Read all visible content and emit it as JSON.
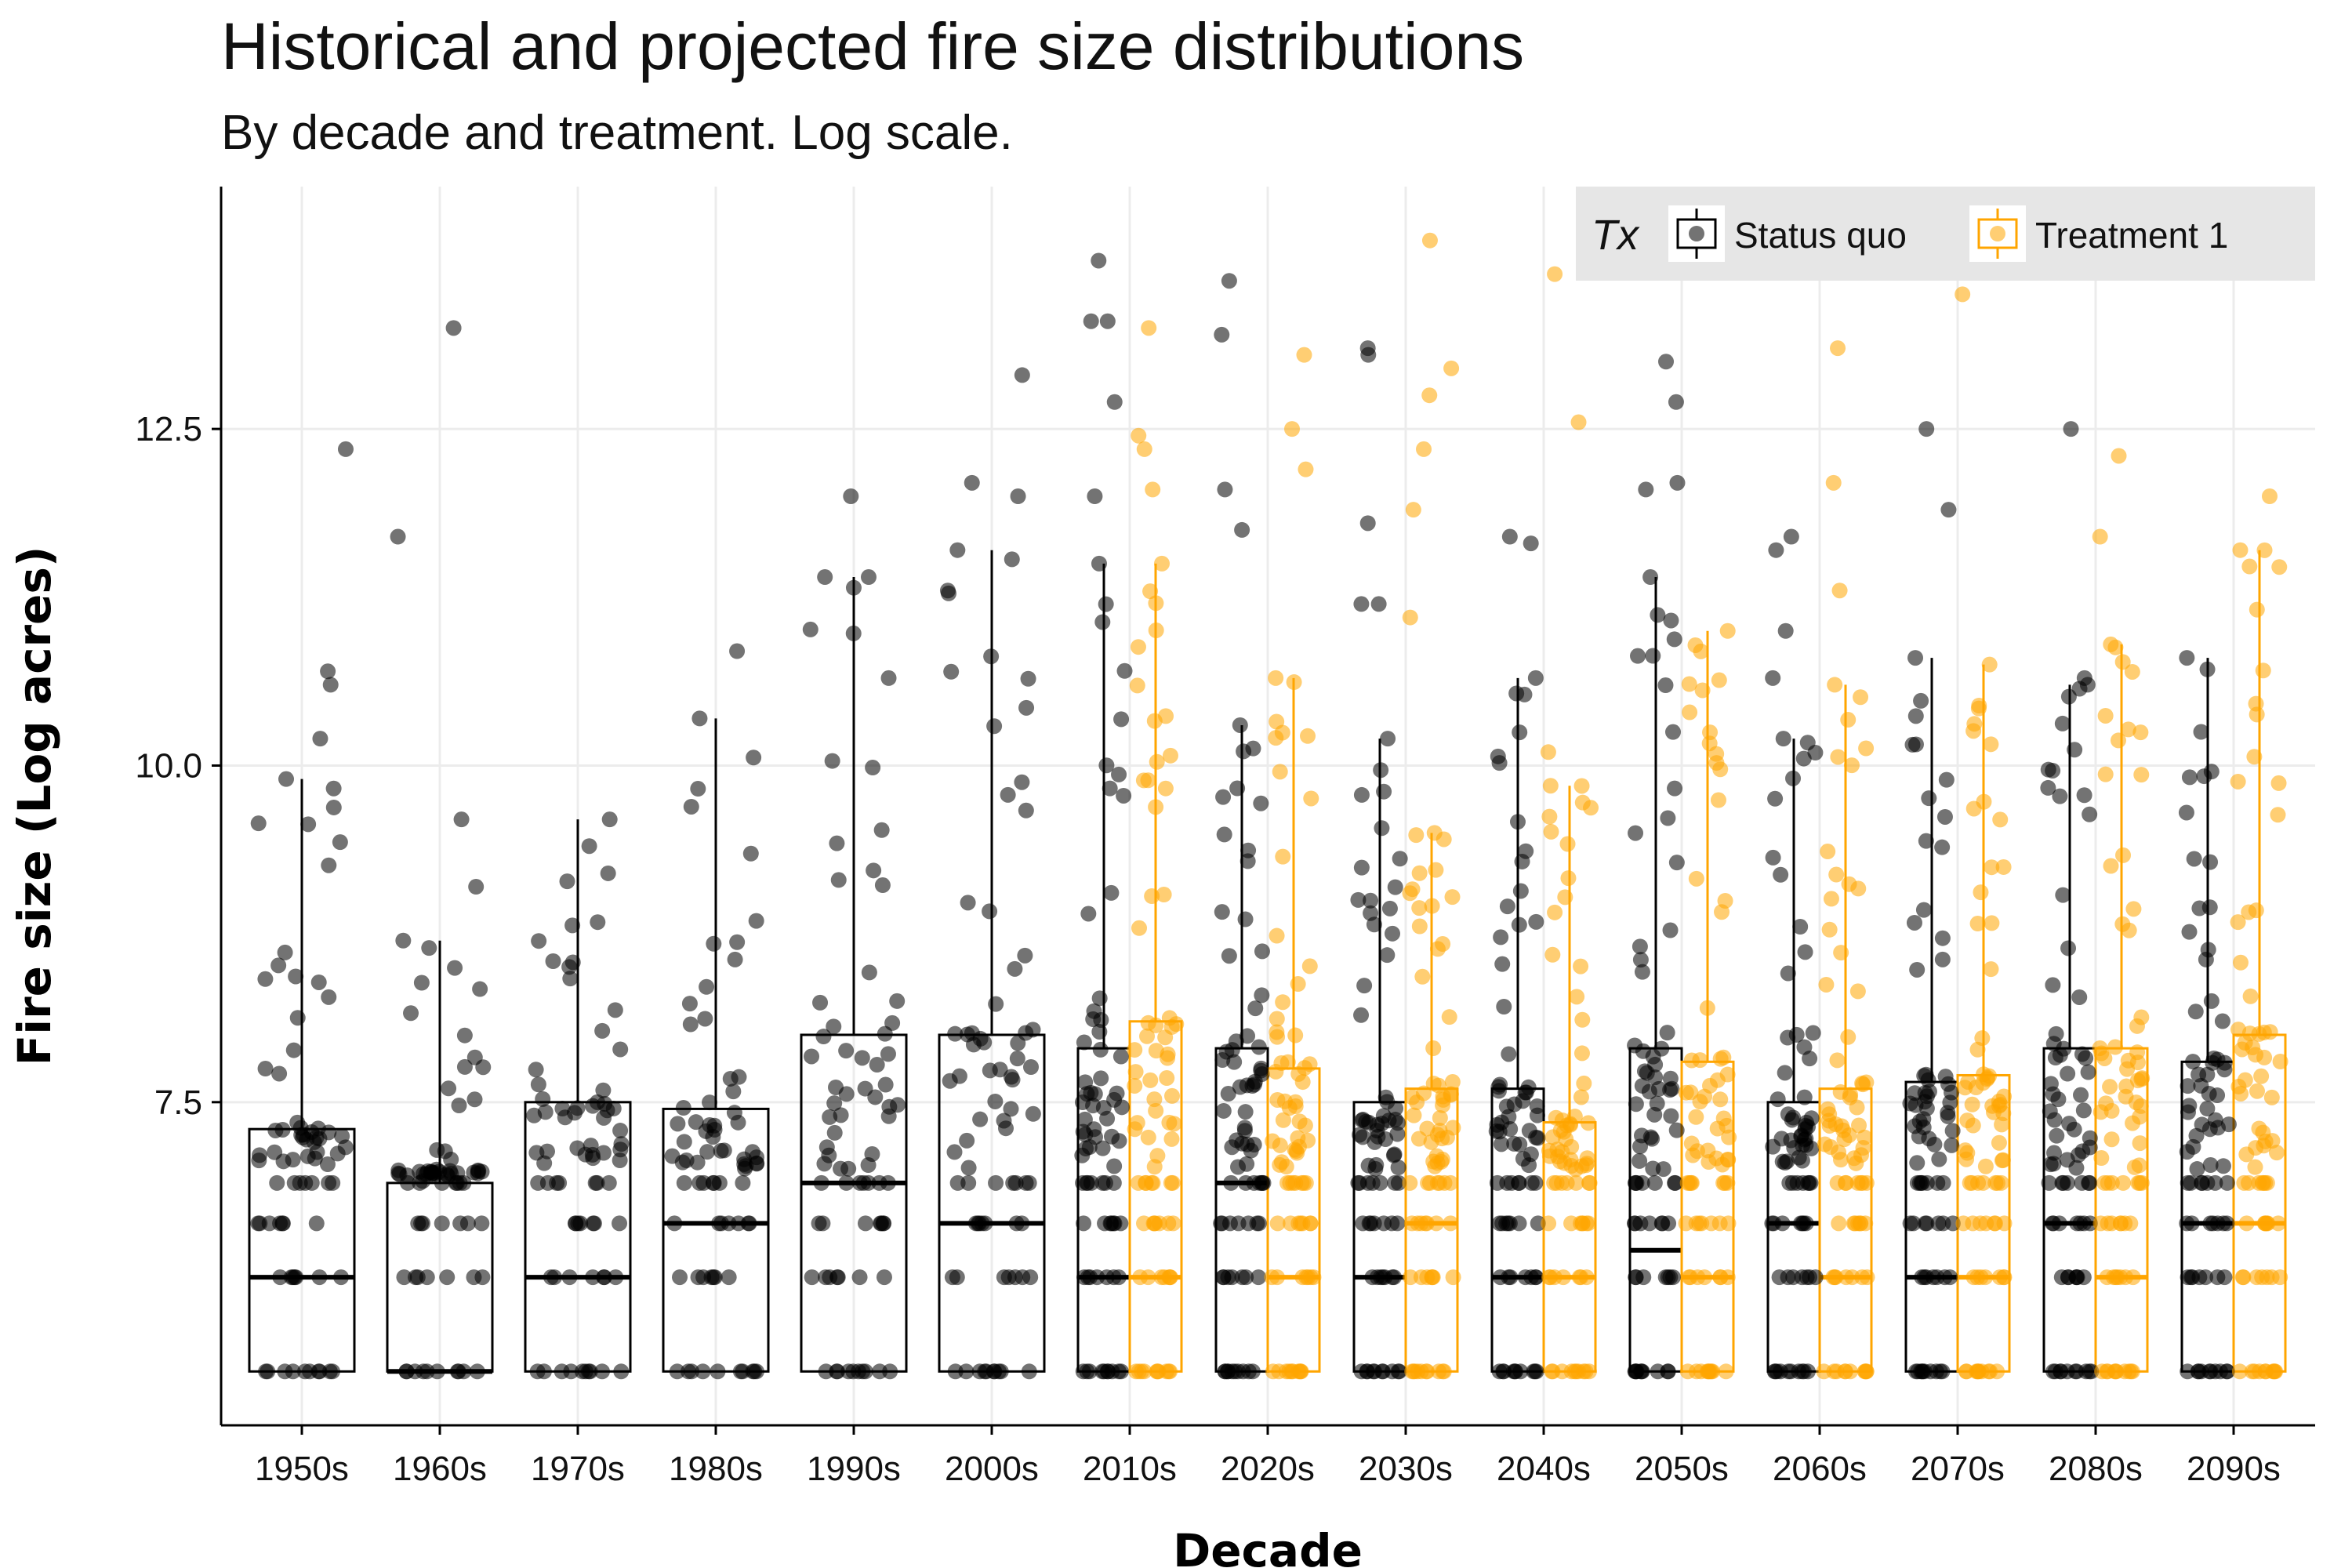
{
  "chart_data": {
    "type": "boxplot",
    "title": "Historical and projected fire size distributions",
    "subtitle": "By decade and treatment. Log scale.",
    "xlabel": "Decade",
    "ylabel": "Fire size (Log acres)",
    "y_scale": "log acres",
    "ylim": [
      5.1,
      14.3
    ],
    "y_ticks": [
      7.5,
      10.0,
      12.5
    ],
    "y_tick_labels": [
      "7.5",
      "10.0",
      "12.5"
    ],
    "grid": true,
    "categories": [
      "1950s",
      "1960s",
      "1970s",
      "1980s",
      "1990s",
      "2000s",
      "2010s",
      "2020s",
      "2030s",
      "2040s",
      "2050s",
      "2060s",
      "2070s",
      "2080s",
      "2090s"
    ],
    "legend": {
      "title": "Tx",
      "position": "top-right",
      "entries": [
        "Status quo",
        "Treatment 1"
      ]
    },
    "series": [
      {
        "name": "Status quo",
        "color": "#000000",
        "point_color": "#000000",
        "boxes": [
          {
            "decade": "1950s",
            "q1": 5.5,
            "median": 6.2,
            "q3": 7.3,
            "upper": 9.9,
            "outliers": [
              10.2,
              10.6,
              10.7,
              12.35
            ]
          },
          {
            "decade": "1960s",
            "q1": 5.5,
            "median": 5.5,
            "q3": 6.9,
            "upper": 8.7,
            "outliers": [
              9.1,
              9.6,
              11.7,
              13.25
            ]
          },
          {
            "decade": "1970s",
            "q1": 5.5,
            "median": 6.2,
            "q3": 7.5,
            "upper": 9.6
          },
          {
            "decade": "1980s",
            "q1": 5.5,
            "median": 6.6,
            "q3": 7.45,
            "upper": 10.35,
            "outliers": [
              10.85
            ]
          },
          {
            "decade": "1990s",
            "q1": 5.5,
            "median": 6.9,
            "q3": 8.0,
            "upper": 11.4,
            "outliers": [
              11.4,
              12.0
            ]
          },
          {
            "decade": "2000s",
            "q1": 5.5,
            "median": 6.6,
            "q3": 8.0,
            "upper": 11.6,
            "outliers": [
              12.0,
              12.1,
              12.9
            ]
          },
          {
            "decade": "2010s",
            "q1": 5.5,
            "median": 6.2,
            "q3": 7.9,
            "upper": 11.5,
            "outliers": [
              12.0,
              12.7,
              13.3,
              13.3,
              13.75
            ]
          },
          {
            "decade": "2020s",
            "q1": 5.5,
            "median": 6.9,
            "q3": 7.9,
            "upper": 10.3,
            "outliers": [
              11.75,
              12.05,
              13.2,
              13.6
            ]
          },
          {
            "decade": "2030s",
            "q1": 5.5,
            "median": 6.2,
            "q3": 7.5,
            "upper": 10.2,
            "outliers": [
              11.2,
              11.2,
              11.8,
              13.05,
              13.1
            ]
          },
          {
            "decade": "2040s",
            "q1": 5.5,
            "median": 6.2,
            "q3": 7.6,
            "upper": 10.65,
            "outliers": [
              11.65,
              11.7
            ]
          },
          {
            "decade": "2050s",
            "q1": 5.5,
            "median": 6.4,
            "q3": 7.9,
            "upper": 11.4,
            "outliers": [
              12.05,
              12.1,
              12.7,
              13.0
            ]
          },
          {
            "decade": "2060s",
            "q1": 5.5,
            "median": 6.6,
            "q3": 7.5,
            "upper": 10.2,
            "outliers": [
              10.65,
              11.0,
              11.6,
              11.7
            ]
          },
          {
            "decade": "2070s",
            "q1": 5.5,
            "median": 6.2,
            "q3": 7.65,
            "upper": 10.8,
            "outliers": [
              11.9,
              12.5,
              13.7
            ]
          },
          {
            "decade": "2080s",
            "q1": 5.5,
            "median": 6.6,
            "q3": 7.9,
            "upper": 10.6,
            "outliers": [
              10.65,
              12.5
            ]
          },
          {
            "decade": "2090s",
            "q1": 5.5,
            "median": 6.6,
            "q3": 7.8,
            "upper": 10.8,
            "outliers": [
              13.7
            ]
          }
        ]
      },
      {
        "name": "Treatment 1",
        "color": "#FFA500",
        "point_color": "#FFA500",
        "boxes": [
          {
            "decade": "2010s",
            "q1": 5.5,
            "median": 6.2,
            "q3": 8.1,
            "upper": 11.5,
            "outliers": [
              12.05,
              12.35,
              12.45,
              13.25
            ]
          },
          {
            "decade": "2020s",
            "q1": 5.5,
            "median": 6.2,
            "q3": 7.75,
            "upper": 10.65,
            "outliers": [
              12.2,
              12.5,
              13.05
            ]
          },
          {
            "decade": "2030s",
            "q1": 5.5,
            "median": 6.6,
            "q3": 7.6,
            "upper": 9.5,
            "outliers": [
              11.1,
              11.9,
              12.35,
              12.75,
              12.95,
              13.9
            ]
          },
          {
            "decade": "2040s",
            "q1": 5.5,
            "median": 6.2,
            "q3": 7.35,
            "upper": 9.85,
            "outliers": [
              10.1,
              12.55,
              13.65
            ]
          },
          {
            "decade": "2050s",
            "q1": 5.5,
            "median": 6.2,
            "q3": 7.8,
            "upper": 11.0
          },
          {
            "decade": "2060s",
            "q1": 5.5,
            "median": 6.2,
            "q3": 7.6,
            "upper": 10.6,
            "outliers": [
              11.3,
              12.1,
              13.1
            ]
          },
          {
            "decade": "2070s",
            "q1": 5.5,
            "median": 6.2,
            "q3": 7.7,
            "upper": 10.75,
            "outliers": [
              13.5
            ]
          },
          {
            "decade": "2080s",
            "q1": 5.5,
            "median": 6.2,
            "q3": 7.9,
            "upper": 10.9,
            "outliers": [
              11.7,
              12.3
            ]
          },
          {
            "decade": "2090s",
            "q1": 5.5,
            "median": 6.6,
            "q3": 8.0,
            "upper": 11.6,
            "outliers": [
              12.0
            ]
          }
        ]
      }
    ]
  }
}
